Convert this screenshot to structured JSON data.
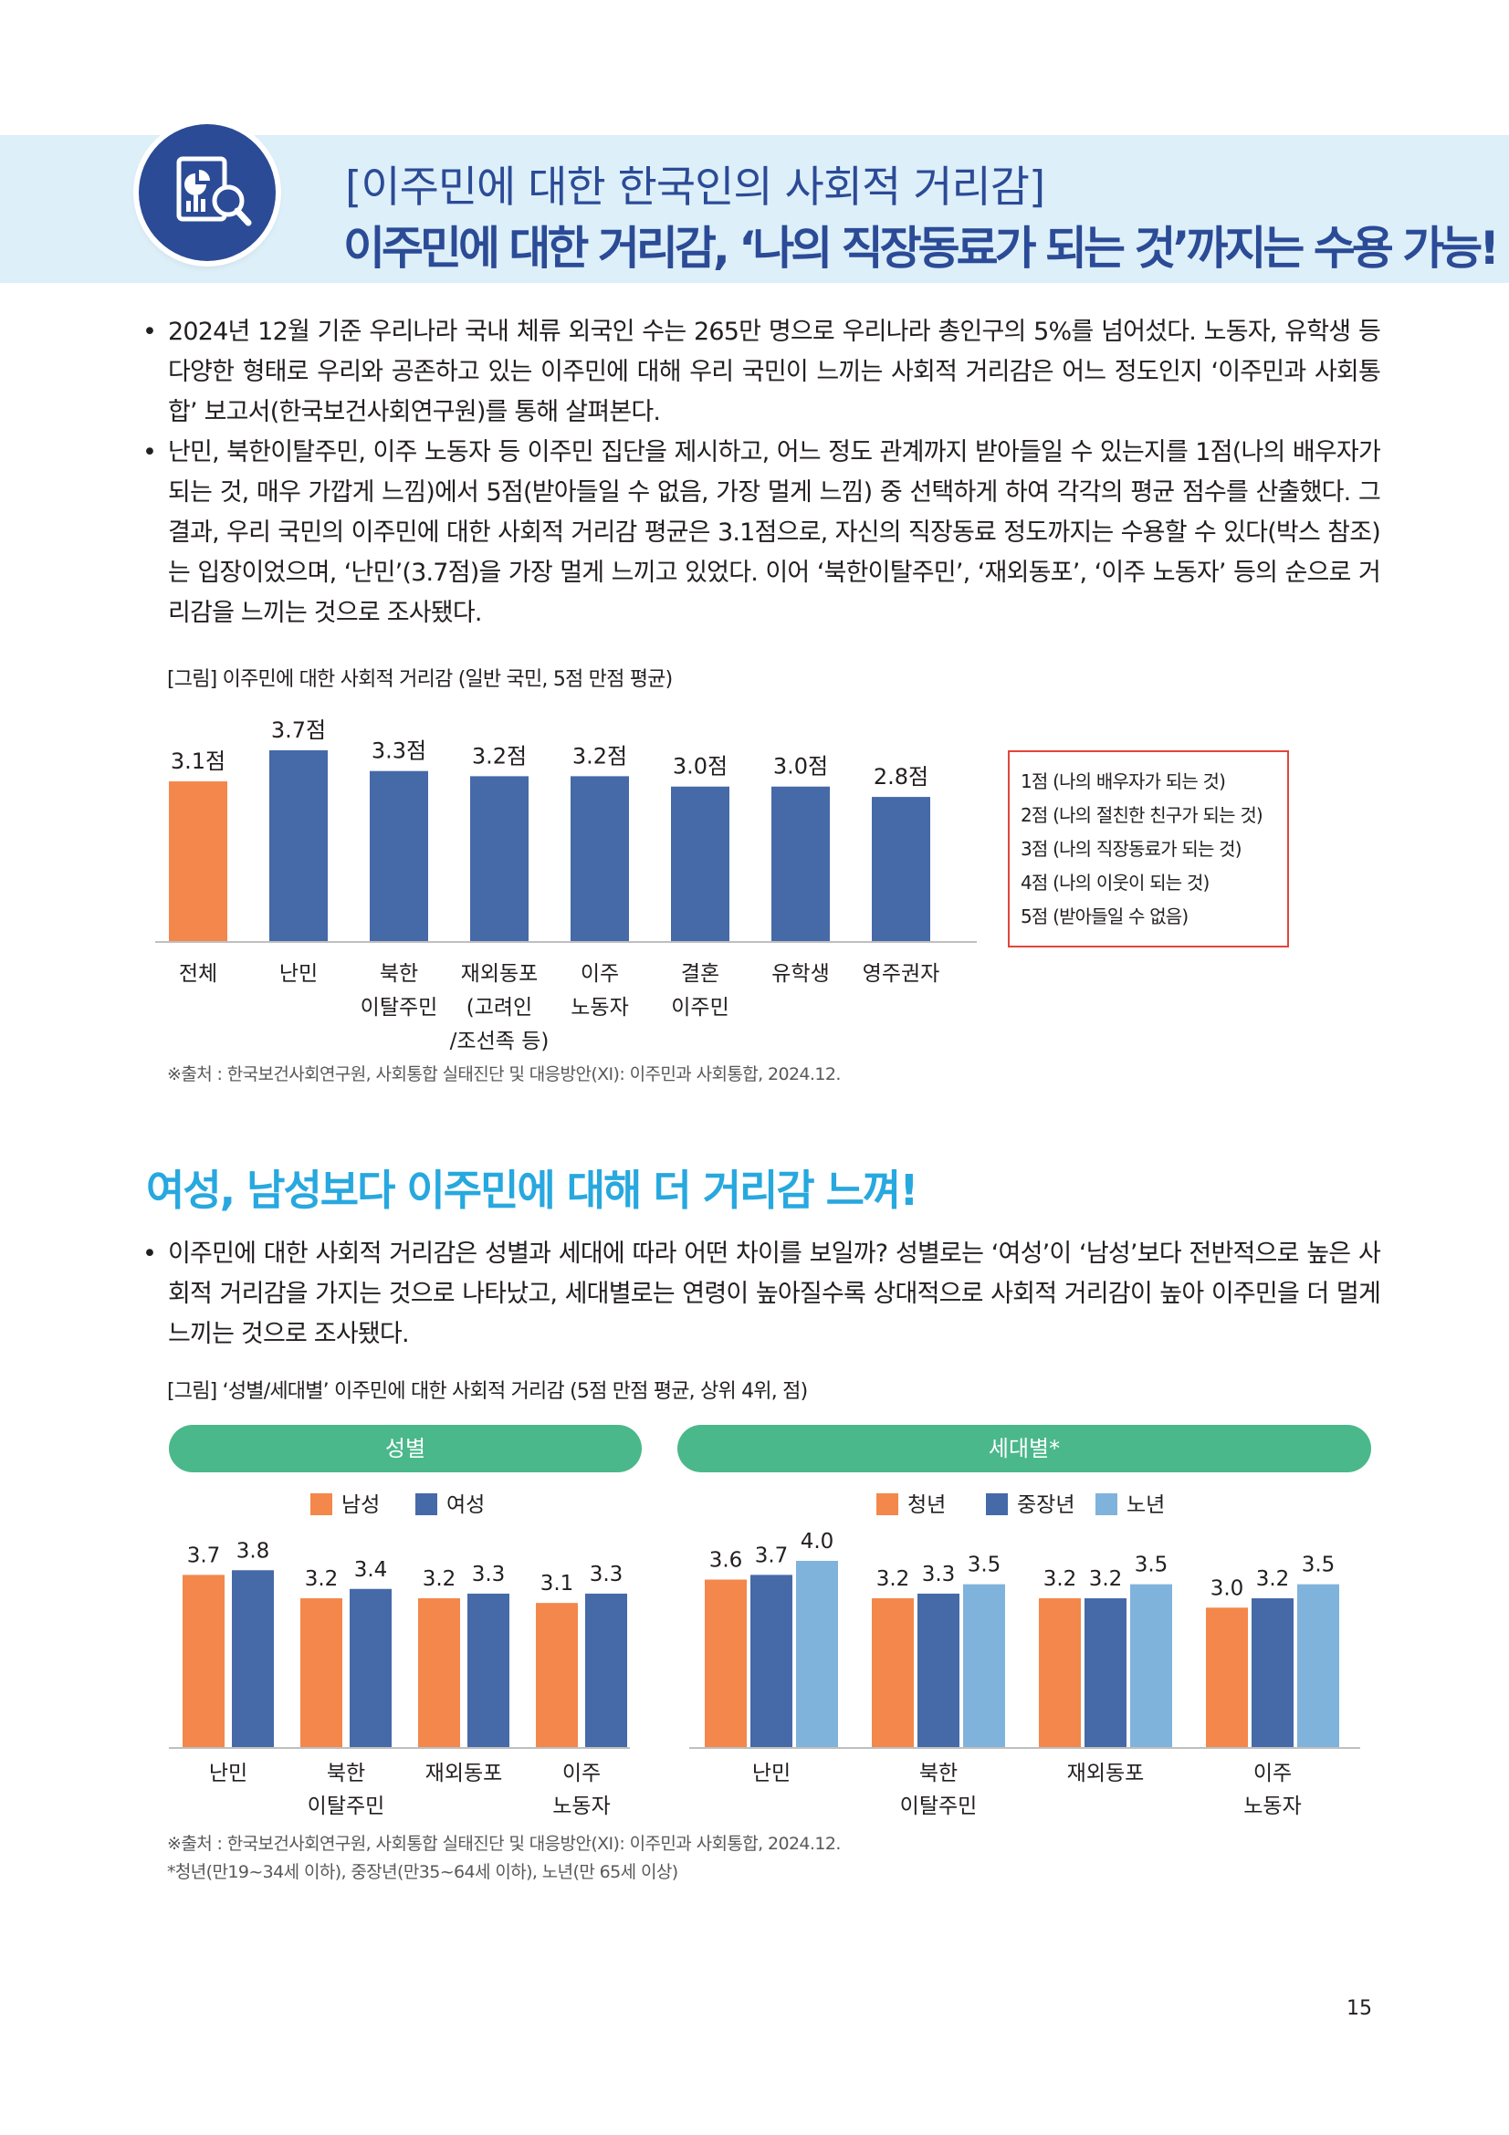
{
  "header": {
    "title_line1": "[이주민에 대한 한국인의 사회적 거리감]",
    "title_line2": "이주민에 대한 거리감, ‘나의 직장동료가 되는 것’까지는 수용 가능!",
    "icon": "report-analysis-icon"
  },
  "intro_bullets": [
    "2024년 12월 기준 우리나라 국내 체류 외국인 수는 265만 명으로 우리나라 총인구의 5%를 넘어섰다. 노동자, 유학생 등 다양한 형태로 우리와 공존하고 있는 이주민에 대해 우리 국민이 느끼는 사회적 거리감은 어느 정도인지 ‘이주민과 사회통합’ 보고서(한국보건사회연구원)를 통해 살펴본다.",
    "난민, 북한이탈주민, 이주 노동자 등 이주민 집단을 제시하고, 어느 정도 관계까지 받아들일 수 있는지를 1점(나의 배우자가 되는 것, 매우 가깝게 느낌)에서 5점(받아들일 수 없음, 가장 멀게 느낌) 중 선택하게 하여 각각의 평균 점수를 산출했다. 그 결과, 우리 국민의 이주민에 대한 사회적 거리감 평균은 3.1점으로, 자신의 직장동료 정도까지는 수용할 수 있다(박스 참조)는 입장이었으며, ‘난민’(3.7점)을 가장 멀게 느끼고 있었다. 이어 ‘북한이탈주민’, ‘재외동포’, ‘이주 노동자’ 등의 순으로 거리감을 느끼는 것으로 조사됐다."
  ],
  "figure1": {
    "caption": "[그림] 이주민에 대한 사회적 거리감 (일반 국민, 5점 만점 평균)",
    "source": "※출처 : 한국보건사회연구원, 사회통합 실태진단 및 대응방안(XI): 이주민과 사회통합, 2024.12.",
    "scale_legend": [
      "1점 (나의 배우자가 되는 것)",
      "2점 (나의 절친한 친구가 되는 것)",
      "3점 (나의 직장동료가 되는 것)",
      "4점 (나의 이웃이 되는 것)",
      "5점 (받아들일 수 없음)"
    ]
  },
  "section2": {
    "title": "여성, 남성보다 이주민에 대해 더 거리감 느껴!",
    "bullet": "이주민에 대한 사회적 거리감은 성별과 세대에 따라 어떤 차이를 보일까? 성별로는 ‘여성’이 ‘남성’보다 전반적으로 높은 사회적 거리감을 가지는 것으로 나타났고, 세대별로는 연령이 높아질수록 상대적으로 사회적 거리감이 높아 이주민을 더 멀게 느끼는 것으로 조사됐다.",
    "caption": "[그림] ‘성별/세대별’ 이주민에 대한 사회적 거리감 (5점 만점 평균, 상위 4위, 점)",
    "gender_pill": "성별",
    "generation_pill": "세대별*",
    "source": "※출처 : 한국보건사회연구원, 사회통합 실태진단 및 대응방안(XI): 이주민과 사회통합, 2024.12.",
    "footnote": "*청년(만19~34세 이하), 중장년(만35~64세 이하), 노년(만 65세 이상)"
  },
  "page_number": "15",
  "colors": {
    "orange": "#f4874b",
    "blue": "#4669a8",
    "light_blue": "#7fb3dc",
    "accent_title": "#2b4b96",
    "green": "#4ab88a",
    "red_border": "#e2453b",
    "cyan_title": "#27a8df"
  },
  "chart_data": [
    {
      "type": "bar",
      "categories": [
        [
          "전체"
        ],
        [
          "난민"
        ],
        [
          "북한",
          "이탈주민"
        ],
        [
          "재외동포",
          "(고려인",
          "/조선족 등)"
        ],
        [
          "이주",
          "노동자"
        ],
        [
          "결혼",
          "이주민"
        ],
        [
          "유학생"
        ],
        [
          "영주권자"
        ]
      ],
      "values": [
        3.1,
        3.7,
        3.3,
        3.2,
        3.2,
        3.0,
        3.0,
        2.8
      ],
      "value_labels": [
        "3.1점",
        "3.7점",
        "3.3점",
        "3.2점",
        "3.2점",
        "3.0점",
        "3.0점",
        "2.8점"
      ],
      "highlight_index": 0,
      "ylim": [
        0,
        4
      ]
    },
    {
      "type": "bar",
      "categories": [
        [
          "난민"
        ],
        [
          "북한",
          "이탈주민"
        ],
        [
          "재외동포"
        ],
        [
          "이주",
          "노동자"
        ]
      ],
      "series": [
        {
          "name": "남성",
          "values": [
            3.7,
            3.2,
            3.2,
            3.1
          ],
          "labels": [
            "3.7",
            "3.2",
            "3.2",
            "3.1"
          ]
        },
        {
          "name": "여성",
          "values": [
            3.8,
            3.4,
            3.3,
            3.3
          ],
          "labels": [
            "3.8",
            "3.4",
            "3.3",
            "3.3"
          ]
        }
      ],
      "ylim": [
        0,
        4.5
      ]
    },
    {
      "type": "bar",
      "categories": [
        [
          "난민"
        ],
        [
          "북한",
          "이탈주민"
        ],
        [
          "재외동포"
        ],
        [
          "이주",
          "노동자"
        ]
      ],
      "series": [
        {
          "name": "청년",
          "values": [
            3.6,
            3.2,
            3.2,
            3.0
          ],
          "labels": [
            "3.6",
            "3.2",
            "3.2",
            "3.0"
          ]
        },
        {
          "name": "중장년",
          "values": [
            3.7,
            3.3,
            3.2,
            3.2
          ],
          "labels": [
            "3.7",
            "3.3",
            "3.2",
            "3.2"
          ]
        },
        {
          "name": "노년",
          "values": [
            4.0,
            3.5,
            3.5,
            3.5
          ],
          "labels": [
            "4.0",
            "3.5",
            "3.5",
            "3.5"
          ]
        }
      ],
      "ylim": [
        0,
        4.5
      ]
    }
  ]
}
